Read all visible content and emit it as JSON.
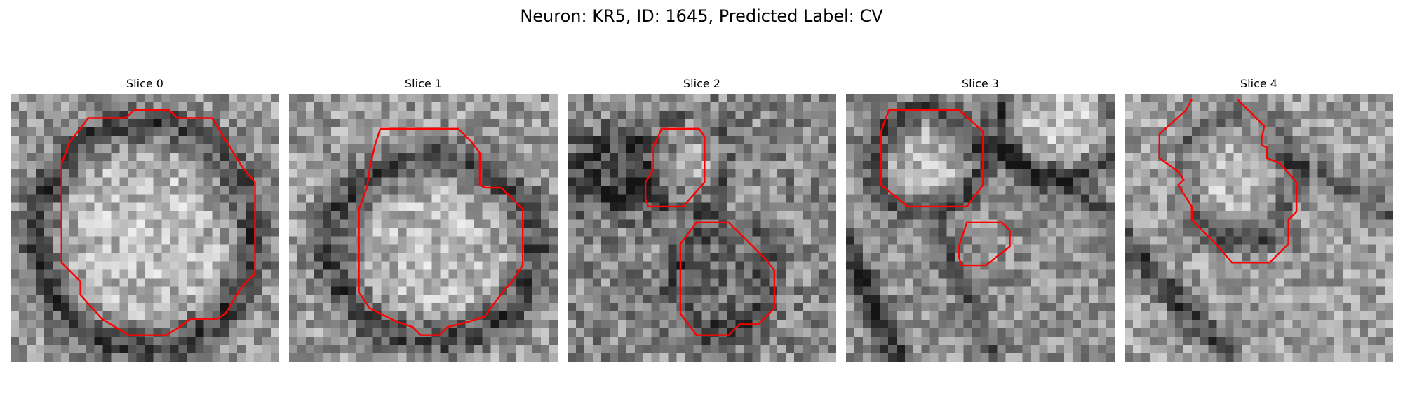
{
  "title": "Neuron: KR5, ID: 1645, Predicted Label: CV",
  "outline_color": "#ff0000",
  "grid_size": 32,
  "panels": [
    {
      "title": "Slice 0"
    },
    {
      "title": "Slice 1"
    },
    {
      "title": "Slice 2"
    },
    {
      "title": "Slice 3"
    },
    {
      "title": "Slice 4"
    }
  ]
}
